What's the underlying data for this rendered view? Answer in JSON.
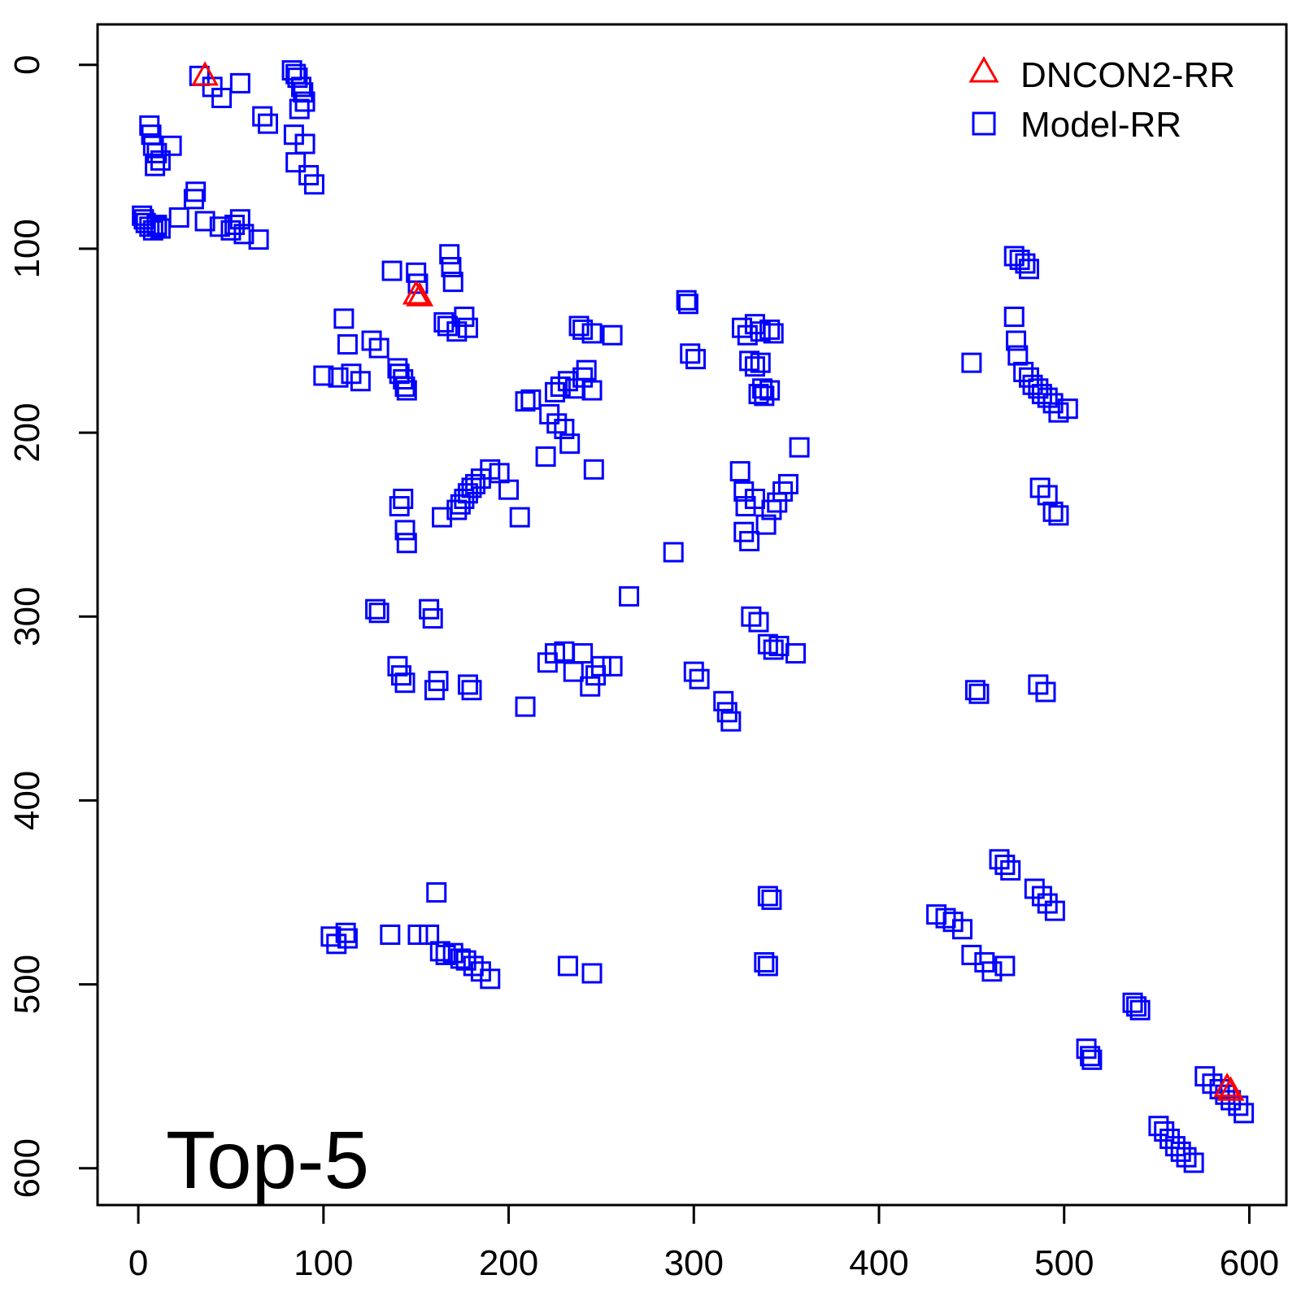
{
  "chart_data": {
    "type": "scatter",
    "title": "",
    "xlabel": "",
    "ylabel": "",
    "panel_label": "Top-5",
    "xlim": [
      -22,
      620
    ],
    "ylim": [
      -22,
      620
    ],
    "y_reversed": true,
    "x_ticks": [
      0,
      100,
      200,
      300,
      400,
      500,
      600
    ],
    "y_ticks": [
      0,
      100,
      200,
      300,
      400,
      500,
      600
    ],
    "x_tick_labels": [
      "0",
      "100",
      "200",
      "300",
      "400",
      "500",
      "600"
    ],
    "y_tick_labels": [
      "0",
      "100",
      "200",
      "300",
      "400",
      "500",
      "600"
    ],
    "grid": false,
    "legend_position": "top-right",
    "series": [
      {
        "name": "DNCON2-RR",
        "marker": "triangle",
        "color": "#ff0000",
        "x": [
          36,
          150,
          152,
          588,
          590
        ],
        "y": [
          6,
          125,
          126,
          556,
          558
        ]
      },
      {
        "name": "Model-RR",
        "marker": "square",
        "color": "#0000ff",
        "x": [
          33,
          40,
          45,
          55,
          83,
          85,
          86,
          88,
          89,
          90,
          87,
          84,
          90,
          85,
          92,
          95,
          6,
          7,
          8,
          10,
          9,
          12,
          18,
          10,
          67,
          70,
          31,
          30,
          2,
          3,
          4,
          6,
          8,
          10,
          12,
          22,
          36,
          44,
          50,
          52,
          55,
          57,
          65,
          137,
          150,
          151,
          168,
          169,
          170,
          165,
          167,
          172,
          176,
          178,
          111,
          113,
          126,
          130,
          100,
          108,
          115,
          120,
          140,
          141,
          143,
          144,
          145,
          238,
          240,
          245,
          256,
          296,
          297,
          298,
          301,
          326,
          329,
          333,
          336,
          341,
          343,
          330,
          333,
          336,
          337,
          335,
          338,
          341,
          209,
          212,
          225,
          228,
          232,
          236,
          240,
          242,
          245,
          222,
          226,
          230,
          233,
          246,
          141,
          143,
          144,
          145,
          164,
          172,
          174,
          176,
          178,
          180,
          182,
          185,
          190,
          195,
          200,
          206,
          220,
          327,
          328,
          333,
          339,
          342,
          345,
          348,
          351,
          357,
          325,
          327,
          330,
          289,
          265,
          128,
          130,
          157,
          159,
          140,
          142,
          144,
          160,
          162,
          178,
          180,
          209,
          221,
          225,
          230,
          235,
          240,
          244,
          247,
          250,
          256,
          300,
          303,
          316,
          318,
          320,
          331,
          335,
          340,
          343,
          346,
          355,
          473,
          476,
          479,
          481,
          473,
          474,
          475,
          450,
          478,
          481,
          483,
          486,
          488,
          491,
          494,
          497,
          502,
          487,
          491,
          494,
          497,
          452,
          454,
          486,
          490,
          465,
          468,
          471,
          484,
          488,
          491,
          495,
          431,
          436,
          440,
          445,
          450,
          457,
          461,
          468,
          537,
          539,
          541,
          512,
          514,
          515,
          576,
          580,
          584,
          587,
          590,
          594,
          597,
          551,
          554,
          557,
          560,
          563,
          566,
          570,
          104,
          107,
          112,
          113,
          136,
          151,
          157,
          161,
          163,
          166,
          170,
          174,
          177,
          181,
          185,
          190,
          232,
          245,
          340,
          342,
          338,
          340
        ],
        "y": [
          6,
          12,
          18,
          10,
          3,
          5,
          7,
          12,
          15,
          20,
          24,
          38,
          43,
          53,
          60,
          65,
          33,
          38,
          44,
          48,
          55,
          52,
          44,
          88,
          28,
          32,
          69,
          73,
          82,
          84,
          86,
          88,
          90,
          87,
          89,
          83,
          85,
          88,
          90,
          87,
          84,
          92,
          95,
          112,
          113,
          119,
          103,
          110,
          118,
          140,
          142,
          145,
          137,
          143,
          138,
          152,
          150,
          154,
          169,
          170,
          168,
          172,
          165,
          168,
          171,
          175,
          177,
          142,
          144,
          146,
          147,
          128,
          130,
          157,
          160,
          143,
          147,
          141,
          145,
          144,
          146,
          161,
          164,
          162,
          176,
          179,
          180,
          177,
          183,
          182,
          178,
          175,
          172,
          176,
          170,
          166,
          177,
          190,
          195,
          198,
          206,
          220,
          240,
          236,
          253,
          260,
          246,
          242,
          239,
          236,
          233,
          230,
          228,
          225,
          220,
          222,
          231,
          246,
          213,
          232,
          240,
          236,
          250,
          242,
          238,
          232,
          228,
          208,
          221,
          254,
          259,
          265,
          289,
          296,
          298,
          296,
          301,
          327,
          332,
          336,
          340,
          335,
          337,
          340,
          349,
          325,
          320,
          319,
          330,
          320,
          338,
          332,
          327,
          327,
          330,
          334,
          346,
          352,
          357,
          300,
          303,
          315,
          318,
          316,
          320,
          104,
          106,
          108,
          111,
          137,
          150,
          158,
          162,
          167,
          170,
          174,
          176,
          179,
          181,
          184,
          189,
          187,
          230,
          234,
          243,
          245,
          340,
          342,
          337,
          341,
          432,
          435,
          438,
          448,
          452,
          456,
          460,
          462,
          464,
          466,
          470,
          484,
          488,
          493,
          490,
          510,
          512,
          514,
          535,
          539,
          541,
          550,
          554,
          557,
          560,
          563,
          566,
          570,
          577,
          580,
          584,
          588,
          591,
          594,
          597,
          474,
          478,
          472,
          475,
          473,
          473,
          473,
          450,
          482,
          484,
          483,
          486,
          487,
          490,
          493,
          497,
          490,
          494,
          452,
          454,
          488,
          490
        ]
      }
    ]
  }
}
